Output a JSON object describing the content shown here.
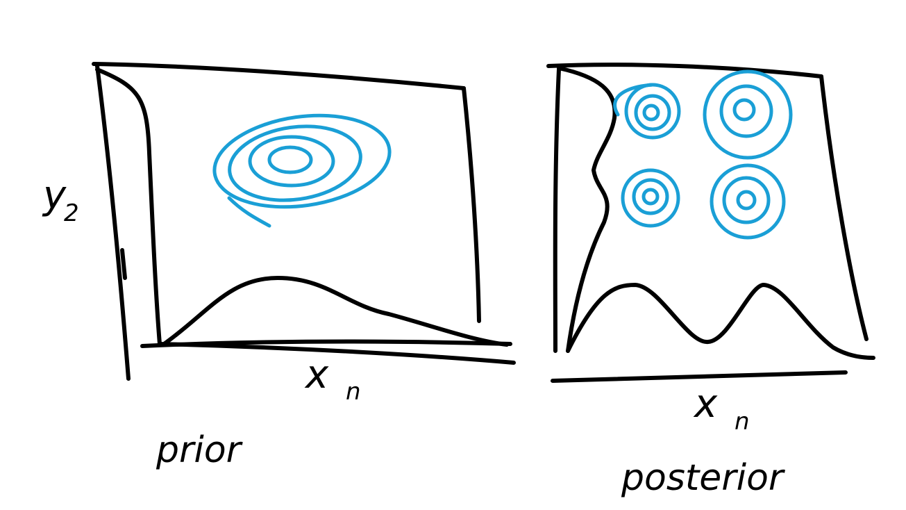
{
  "panels": [
    {
      "y_label": "y",
      "y_subscript": "2",
      "x_label": "x",
      "x_subscript": "n",
      "caption": "prior"
    },
    {
      "x_label": "x",
      "x_subscript": "n",
      "caption": "posterior"
    }
  ]
}
